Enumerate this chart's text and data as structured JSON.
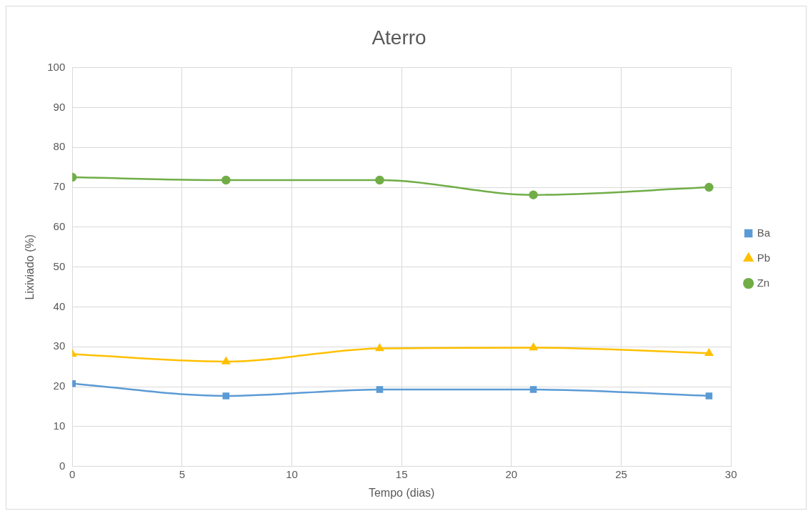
{
  "chart_data": {
    "type": "line",
    "title": "Aterro",
    "xlabel": "Tempo (dias)",
    "ylabel": "Lixiviado (%)",
    "x": [
      0,
      7,
      14,
      21,
      29
    ],
    "series": [
      {
        "name": "Ba",
        "color": "#5b9bd5",
        "marker": "square",
        "values": [
          20.8,
          17.7,
          19.3,
          19.3,
          17.7
        ]
      },
      {
        "name": "Pb",
        "color": "#ffc000",
        "marker": "triangle",
        "values": [
          28.2,
          26.3,
          29.6,
          29.8,
          28.4
        ]
      },
      {
        "name": "Zn",
        "color": "#70ad47",
        "marker": "circle",
        "values": [
          72.5,
          71.8,
          71.8,
          68.1,
          70.0
        ]
      }
    ],
    "xlim": [
      0,
      30
    ],
    "xticks": [
      0,
      5,
      10,
      15,
      20,
      25,
      30
    ],
    "ylim": [
      0,
      100
    ],
    "yticks": [
      0,
      10,
      20,
      30,
      40,
      50,
      60,
      70,
      80,
      90,
      100
    ],
    "grid": true,
    "legend": "right"
  }
}
